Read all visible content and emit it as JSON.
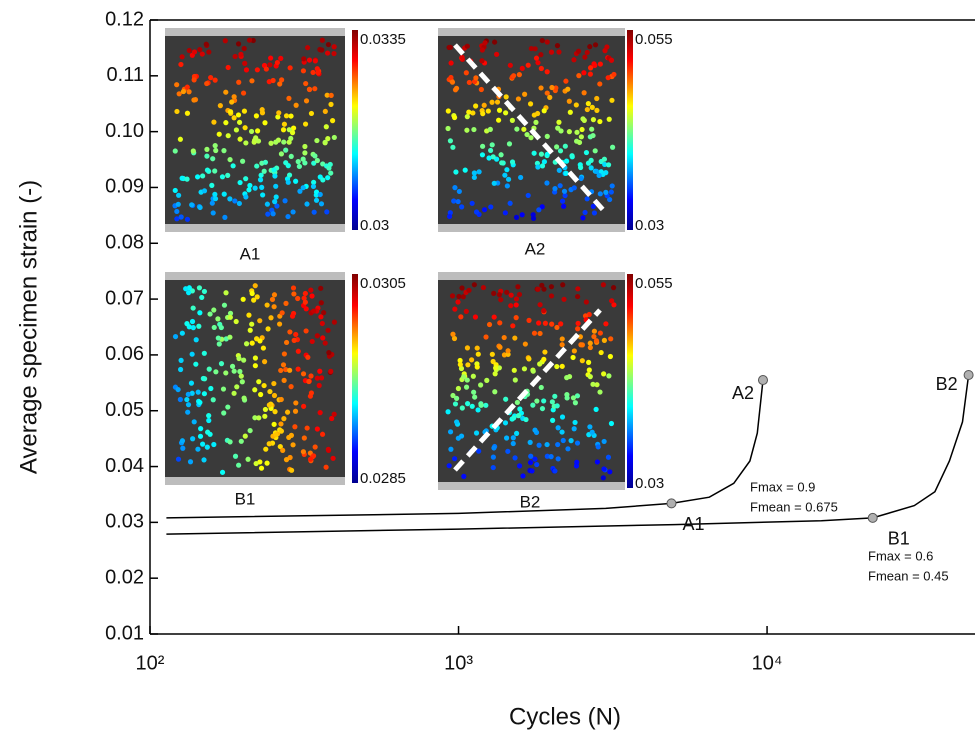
{
  "chart_data": {
    "type": "line",
    "xlabel": "Cycles (N)",
    "ylabel": "Average specimen strain (-)",
    "xscale": "log",
    "xlim": [
      100,
      47200
    ],
    "ylim": [
      0.01,
      0.12
    ],
    "xticks": [
      {
        "value": 100,
        "label": "10²"
      },
      {
        "value": 1000,
        "label": "10³"
      },
      {
        "value": 10000,
        "label": "10⁴"
      }
    ],
    "yticks": [
      0.01,
      0.02,
      0.03,
      0.04,
      0.05,
      0.06,
      0.07,
      0.08,
      0.09,
      {
        "value": 0.1,
        "label": "0.10"
      },
      0.11,
      0.12
    ],
    "series": [
      {
        "color": "#000000",
        "x": [
          113,
          1000,
          3000,
          4900,
          6500,
          7800,
          8800,
          9300,
          9700
        ],
        "values": [
          0.0308,
          0.0316,
          0.0325,
          0.0334,
          0.0345,
          0.037,
          0.041,
          0.046,
          0.0555
        ]
      },
      {
        "color": "#000000",
        "x": [
          113,
          1000,
          5000,
          15000,
          22000,
          30000,
          35000,
          39000,
          43000,
          45000
        ],
        "values": [
          0.0279,
          0.0288,
          0.0296,
          0.0303,
          0.0308,
          0.033,
          0.0355,
          0.041,
          0.048,
          0.0564
        ]
      }
    ],
    "points": [
      {
        "text": "A1",
        "x": 4900,
        "y": 0.0334
      },
      {
        "text": "A2",
        "x": 9700,
        "y": 0.0555
      },
      {
        "text": "B1",
        "x": 22000,
        "y": 0.0308
      },
      {
        "text": "B2",
        "x": 45000,
        "y": 0.0564
      }
    ],
    "point_color": "#b0b0b0",
    "notes": [
      {
        "lines": [
          "Fmax = 0.9",
          "Fmean = 0.675"
        ]
      },
      {
        "lines": [
          "Fmax = 0.6",
          "Fmean = 0.45"
        ]
      }
    ],
    "insets": [
      {
        "caption": "A1",
        "colorbar_max": 0.0335,
        "colorbar_min": 0.03
      },
      {
        "caption": "A2",
        "colorbar_max": 0.055,
        "colorbar_min": 0.03
      },
      {
        "caption": "B1",
        "colorbar_max": 0.0305,
        "colorbar_min": 0.0285
      },
      {
        "caption": "B2",
        "colorbar_max": 0.055,
        "colorbar_min": 0.03
      }
    ]
  }
}
